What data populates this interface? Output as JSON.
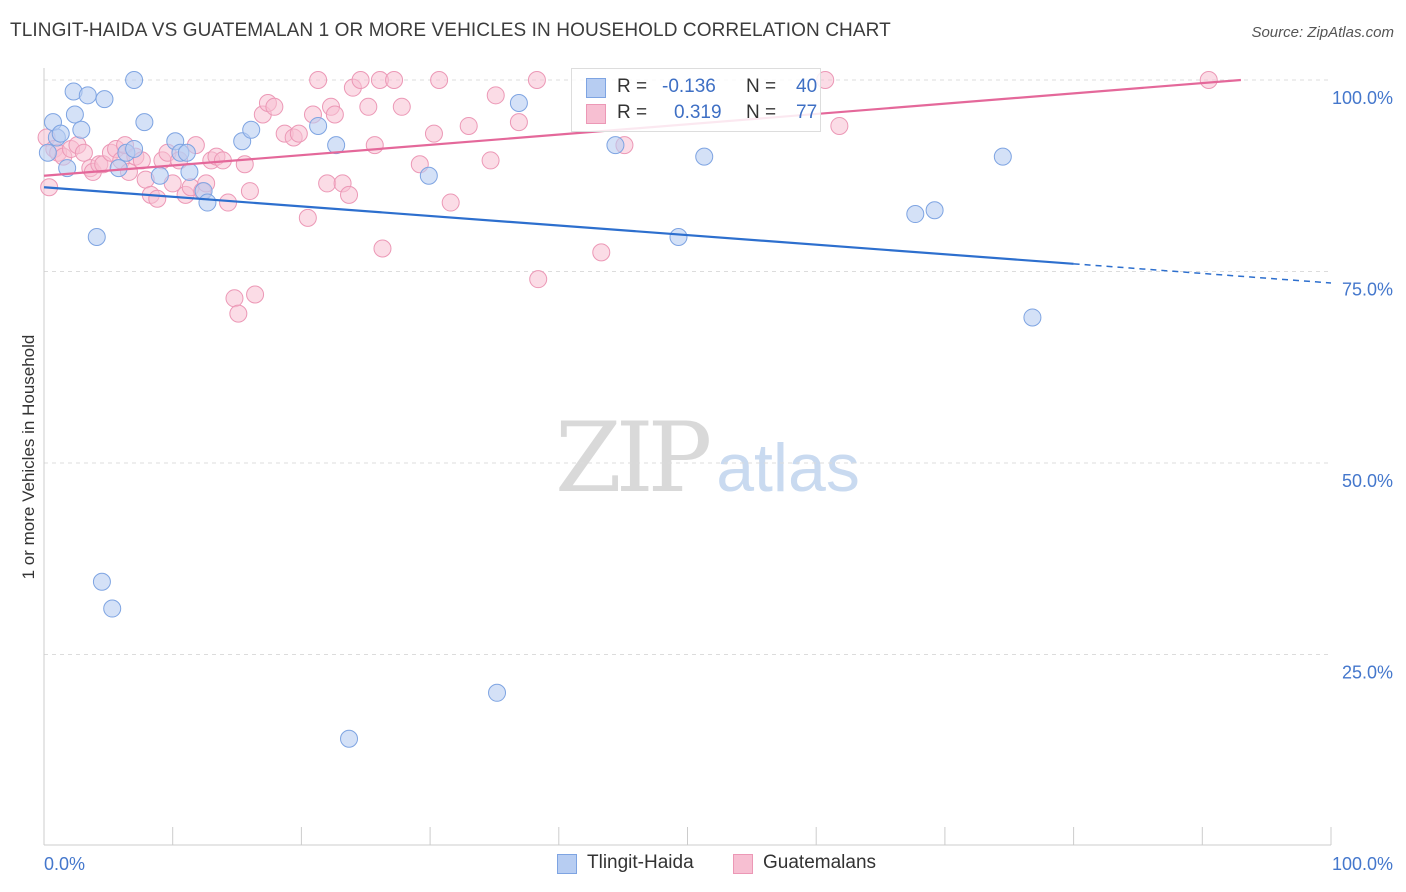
{
  "title": "TLINGIT-HAIDA VS GUATEMALAN 1 OR MORE VEHICLES IN HOUSEHOLD CORRELATION CHART",
  "source": "Source: ZipAtlas.com",
  "watermark": {
    "zip": "ZIP",
    "atlas": "atlas"
  },
  "legend": {
    "r_label": "R =",
    "n_label": "N =",
    "rows": [
      {
        "r": "-0.136",
        "n": "40"
      },
      {
        "r": "0.319",
        "n": "77"
      }
    ]
  },
  "bottom_legend": [
    "Tlingit-Haida",
    "Guatemalans"
  ],
  "colors": {
    "blue_fill": "#b7cdf2",
    "blue_stroke": "#7ea4e2",
    "blue_line": "#2d6fce",
    "pink_fill": "#f7bfd2",
    "pink_stroke": "#ec98b6",
    "pink_line": "#e4689a",
    "axis_text": "#4477cc",
    "grid": "#dcdcdc"
  },
  "chart_data": {
    "type": "scatter",
    "title": "TLINGIT-HAIDA VS GUATEMALAN 1 OR MORE VEHICLES IN HOUSEHOLD CORRELATION CHART",
    "xlabel": "",
    "ylabel": "1 or more Vehicles in Household",
    "xlim": [
      0,
      100
    ],
    "ylim": [
      0,
      100
    ],
    "x_tick_labels": [
      "0.0%",
      "100.0%"
    ],
    "y_tick_labels": [
      "25.0%",
      "50.0%",
      "75.0%",
      "100.0%"
    ],
    "y_ticks": [
      25,
      50,
      75,
      100
    ],
    "grid": true,
    "series": [
      {
        "name": "Tlingit-Haida",
        "color": "#b7cdf2",
        "trend": {
          "r": -0.136,
          "n": 40,
          "x0": 0,
          "y0": 86.0,
          "x1": 80,
          "y1": 76.0,
          "dash_to": 100
        },
        "points": [
          [
            0.3,
            90.5
          ],
          [
            0.7,
            94.5
          ],
          [
            1.0,
            92.5
          ],
          [
            1.3,
            93.0
          ],
          [
            1.8,
            88.5
          ],
          [
            2.3,
            98.5
          ],
          [
            2.4,
            95.5
          ],
          [
            2.9,
            93.5
          ],
          [
            3.4,
            98.0
          ],
          [
            4.1,
            79.5
          ],
          [
            4.7,
            97.5
          ],
          [
            5.8,
            88.5
          ],
          [
            6.4,
            90.5
          ],
          [
            7.0,
            91.0
          ],
          [
            7.0,
            100.0
          ],
          [
            7.8,
            94.5
          ],
          [
            9.0,
            87.5
          ],
          [
            10.2,
            92.0
          ],
          [
            10.6,
            90.5
          ],
          [
            11.1,
            90.5
          ],
          [
            11.3,
            88.0
          ],
          [
            12.4,
            85.5
          ],
          [
            12.7,
            84.0
          ],
          [
            15.4,
            92.0
          ],
          [
            16.1,
            93.5
          ],
          [
            21.3,
            94.0
          ],
          [
            22.7,
            91.5
          ],
          [
            29.9,
            87.5
          ],
          [
            36.9,
            97.0
          ],
          [
            44.4,
            91.5
          ],
          [
            51.3,
            90.0
          ],
          [
            49.3,
            79.5
          ],
          [
            67.7,
            82.5
          ],
          [
            69.2,
            83.0
          ],
          [
            74.5,
            90.0
          ],
          [
            76.8,
            69.0
          ],
          [
            4.5,
            34.5
          ],
          [
            5.3,
            31.0
          ],
          [
            23.7,
            14.0
          ],
          [
            35.2,
            20.0
          ]
        ]
      },
      {
        "name": "Guatemalans",
        "color": "#f7bfd2",
        "trend": {
          "r": 0.319,
          "n": 77,
          "x0": 0,
          "y0": 87.5,
          "x1": 93,
          "y1": 100.0
        },
        "points": [
          [
            0.2,
            92.5
          ],
          [
            0.4,
            86.0
          ],
          [
            0.8,
            91.0
          ],
          [
            1.1,
            90.5
          ],
          [
            1.5,
            90.0
          ],
          [
            2.1,
            91.0
          ],
          [
            2.6,
            91.5
          ],
          [
            3.1,
            90.5
          ],
          [
            3.6,
            88.5
          ],
          [
            3.8,
            88.0
          ],
          [
            4.3,
            89.0
          ],
          [
            4.6,
            89.0
          ],
          [
            5.2,
            90.5
          ],
          [
            5.6,
            91.0
          ],
          [
            6.0,
            89.5
          ],
          [
            6.3,
            91.5
          ],
          [
            6.6,
            88.0
          ],
          [
            7.1,
            90.0
          ],
          [
            7.6,
            89.5
          ],
          [
            7.9,
            87.0
          ],
          [
            8.3,
            85.0
          ],
          [
            8.8,
            84.5
          ],
          [
            9.2,
            89.5
          ],
          [
            9.6,
            90.5
          ],
          [
            10.0,
            86.5
          ],
          [
            10.5,
            89.5
          ],
          [
            11.0,
            85.0
          ],
          [
            11.4,
            86.0
          ],
          [
            11.8,
            91.5
          ],
          [
            12.3,
            85.5
          ],
          [
            12.6,
            86.5
          ],
          [
            13.0,
            89.5
          ],
          [
            13.4,
            90.0
          ],
          [
            13.9,
            89.5
          ],
          [
            14.3,
            84.0
          ],
          [
            14.8,
            71.5
          ],
          [
            15.1,
            69.5
          ],
          [
            15.6,
            89.0
          ],
          [
            16.0,
            85.5
          ],
          [
            16.4,
            72.0
          ],
          [
            17.0,
            95.5
          ],
          [
            17.4,
            97.0
          ],
          [
            17.9,
            96.5
          ],
          [
            18.7,
            93.0
          ],
          [
            19.4,
            92.5
          ],
          [
            19.8,
            93.0
          ],
          [
            20.5,
            82.0
          ],
          [
            20.9,
            95.5
          ],
          [
            21.3,
            100.0
          ],
          [
            22.0,
            86.5
          ],
          [
            22.3,
            96.5
          ],
          [
            22.6,
            95.5
          ],
          [
            23.2,
            86.5
          ],
          [
            23.7,
            85.0
          ],
          [
            24.0,
            99.0
          ],
          [
            24.6,
            100.0
          ],
          [
            25.2,
            96.5
          ],
          [
            25.7,
            91.5
          ],
          [
            26.1,
            100.0
          ],
          [
            26.3,
            78.0
          ],
          [
            27.2,
            100.0
          ],
          [
            27.8,
            96.5
          ],
          [
            29.2,
            89.0
          ],
          [
            30.3,
            93.0
          ],
          [
            30.7,
            100.0
          ],
          [
            31.6,
            84.0
          ],
          [
            33.0,
            94.0
          ],
          [
            34.7,
            89.5
          ],
          [
            35.1,
            98.0
          ],
          [
            36.9,
            94.5
          ],
          [
            38.3,
            100.0
          ],
          [
            38.4,
            74.0
          ],
          [
            43.3,
            77.5
          ],
          [
            45.1,
            91.5
          ],
          [
            60.7,
            100.0
          ],
          [
            61.8,
            94.0
          ],
          [
            90.5,
            100.0
          ]
        ]
      }
    ]
  }
}
